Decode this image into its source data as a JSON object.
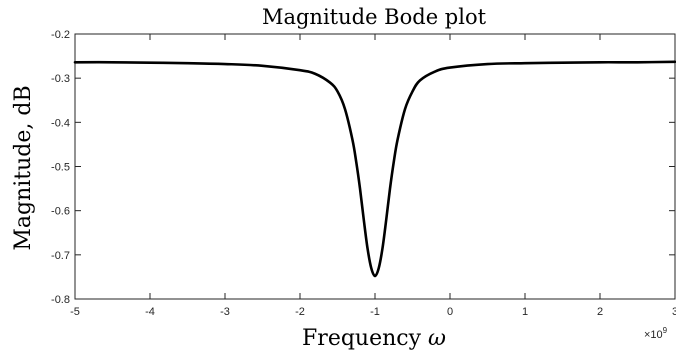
{
  "chart_data": {
    "type": "line",
    "title": "Magnitude Bode plot",
    "xlabel": "Frequency ω",
    "ylabel": "Magnitude, dB",
    "x_exponent_label": "×10",
    "x_exponent_power": "9",
    "xlim": [
      -5,
      3
    ],
    "ylim": [
      -0.8,
      -0.2
    ],
    "xticks": [
      -5,
      -4,
      -3,
      -2,
      -1,
      0,
      1,
      2,
      3
    ],
    "xtick_labels": [
      "-5",
      "-4",
      "-3",
      "-2",
      "-1",
      "0",
      "1",
      "2",
      "3"
    ],
    "yticks": [
      -0.8,
      -0.7,
      -0.6,
      -0.5,
      -0.4,
      -0.3,
      -0.2
    ],
    "ytick_labels": [
      "-0.8",
      "-0.7",
      "-0.6",
      "-0.5",
      "-0.4",
      "-0.3",
      "-0.2"
    ],
    "grid": false,
    "series": [
      {
        "color": "#000000",
        "x": [
          -5,
          -4.5,
          -4,
          -3.5,
          -3,
          -2.5,
          -2,
          -1.8,
          -1.6,
          -1.5,
          -1.4,
          -1.3,
          -1.25,
          -1.2,
          -1.15,
          -1.1,
          -1.05,
          -1.0,
          -0.95,
          -0.9,
          -0.85,
          -0.8,
          -0.75,
          -0.7,
          -0.6,
          -0.5,
          -0.4,
          -0.2,
          0,
          0.5,
          1,
          1.5,
          2,
          2.5,
          3
        ],
        "y": [
          -0.264,
          -0.264,
          -0.265,
          -0.266,
          -0.268,
          -0.272,
          -0.282,
          -0.29,
          -0.31,
          -0.33,
          -0.37,
          -0.44,
          -0.49,
          -0.55,
          -0.62,
          -0.685,
          -0.73,
          -0.748,
          -0.73,
          -0.685,
          -0.62,
          -0.55,
          -0.49,
          -0.44,
          -0.37,
          -0.33,
          -0.305,
          -0.285,
          -0.276,
          -0.268,
          -0.266,
          -0.265,
          -0.264,
          -0.264,
          -0.263
        ]
      }
    ]
  }
}
